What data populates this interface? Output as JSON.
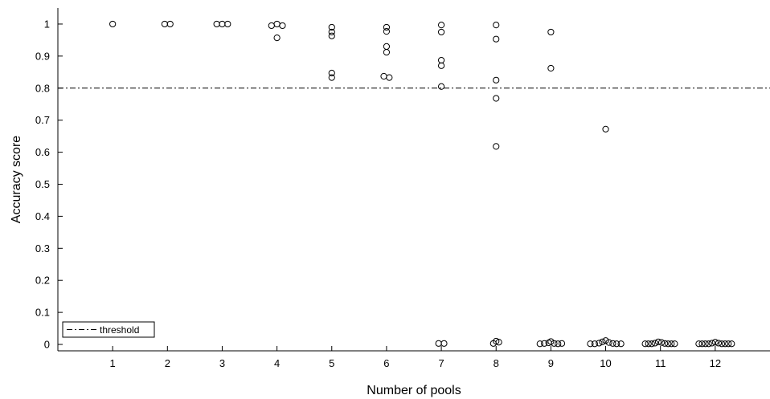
{
  "chart_data": {
    "type": "scatter",
    "xlabel": "Number of pools",
    "ylabel": "Accuracy score",
    "x_ticks": [
      "1",
      "2",
      "3",
      "4",
      "5",
      "6",
      "7",
      "8",
      "9",
      "10",
      "11",
      "12"
    ],
    "y_ticks": [
      "0",
      "0.1",
      "0.2",
      "0.3",
      "0.4",
      "0.5",
      "0.6",
      "0.7",
      "0.8",
      "0.9",
      "1"
    ],
    "xlim": [
      0,
      13
    ],
    "ylim": [
      -0.02,
      1.05
    ],
    "marker": "open-circle",
    "threshold": {
      "value": 0.8,
      "label": "threshold",
      "style": "dash-dot"
    },
    "legend_position": "bottom-left",
    "grid": false,
    "points": [
      {
        "x": 1,
        "y": 1.0
      },
      {
        "x": 1.95,
        "y": 1.0
      },
      {
        "x": 2.05,
        "y": 1.0
      },
      {
        "x": 2.9,
        "y": 1.0
      },
      {
        "x": 3.0,
        "y": 1.0
      },
      {
        "x": 3.1,
        "y": 1.0
      },
      {
        "x": 3.9,
        "y": 0.995
      },
      {
        "x": 4.0,
        "y": 1.0
      },
      {
        "x": 4.1,
        "y": 0.995
      },
      {
        "x": 4.0,
        "y": 0.957
      },
      {
        "x": 5.0,
        "y": 0.99
      },
      {
        "x": 5.0,
        "y": 0.975
      },
      {
        "x": 5.0,
        "y": 0.963
      },
      {
        "x": 5.0,
        "y": 0.847
      },
      {
        "x": 5.0,
        "y": 0.833
      },
      {
        "x": 6.0,
        "y": 0.99
      },
      {
        "x": 6.0,
        "y": 0.977
      },
      {
        "x": 6.0,
        "y": 0.93
      },
      {
        "x": 6.0,
        "y": 0.912
      },
      {
        "x": 5.95,
        "y": 0.837
      },
      {
        "x": 6.05,
        "y": 0.833
      },
      {
        "x": 7.0,
        "y": 0.997
      },
      {
        "x": 7.0,
        "y": 0.975
      },
      {
        "x": 7.0,
        "y": 0.887
      },
      {
        "x": 7.0,
        "y": 0.87
      },
      {
        "x": 7.0,
        "y": 0.805
      },
      {
        "x": 6.95,
        "y": 0.003
      },
      {
        "x": 7.05,
        "y": 0.003
      },
      {
        "x": 8.0,
        "y": 0.997
      },
      {
        "x": 8.0,
        "y": 0.953
      },
      {
        "x": 8.0,
        "y": 0.825
      },
      {
        "x": 8.0,
        "y": 0.768
      },
      {
        "x": 8.0,
        "y": 0.618
      },
      {
        "x": 7.95,
        "y": 0.003
      },
      {
        "x": 8.0,
        "y": 0.01
      },
      {
        "x": 8.05,
        "y": 0.007
      },
      {
        "x": 9.0,
        "y": 0.975
      },
      {
        "x": 9.0,
        "y": 0.862
      },
      {
        "x": 8.8,
        "y": 0.002
      },
      {
        "x": 8.88,
        "y": 0.003
      },
      {
        "x": 8.96,
        "y": 0.005
      },
      {
        "x": 9.0,
        "y": 0.009
      },
      {
        "x": 9.06,
        "y": 0.003
      },
      {
        "x": 9.13,
        "y": 0.002
      },
      {
        "x": 9.2,
        "y": 0.003
      },
      {
        "x": 10.0,
        "y": 0.672
      },
      {
        "x": 9.72,
        "y": 0.002
      },
      {
        "x": 9.8,
        "y": 0.002
      },
      {
        "x": 9.88,
        "y": 0.004
      },
      {
        "x": 9.94,
        "y": 0.008
      },
      {
        "x": 10.0,
        "y": 0.012
      },
      {
        "x": 10.06,
        "y": 0.006
      },
      {
        "x": 10.13,
        "y": 0.003
      },
      {
        "x": 10.2,
        "y": 0.002
      },
      {
        "x": 10.28,
        "y": 0.002
      },
      {
        "x": 10.72,
        "y": 0.002
      },
      {
        "x": 10.78,
        "y": 0.002
      },
      {
        "x": 10.84,
        "y": 0.002
      },
      {
        "x": 10.9,
        "y": 0.004
      },
      {
        "x": 10.96,
        "y": 0.008
      },
      {
        "x": 11.02,
        "y": 0.006
      },
      {
        "x": 11.08,
        "y": 0.003
      },
      {
        "x": 11.14,
        "y": 0.002
      },
      {
        "x": 11.2,
        "y": 0.002
      },
      {
        "x": 11.26,
        "y": 0.002
      },
      {
        "x": 11.7,
        "y": 0.002
      },
      {
        "x": 11.76,
        "y": 0.002
      },
      {
        "x": 11.82,
        "y": 0.002
      },
      {
        "x": 11.88,
        "y": 0.002
      },
      {
        "x": 11.94,
        "y": 0.004
      },
      {
        "x": 12.0,
        "y": 0.007
      },
      {
        "x": 12.06,
        "y": 0.004
      },
      {
        "x": 12.12,
        "y": 0.002
      },
      {
        "x": 12.18,
        "y": 0.002
      },
      {
        "x": 12.24,
        "y": 0.002
      },
      {
        "x": 12.3,
        "y": 0.002
      }
    ]
  }
}
